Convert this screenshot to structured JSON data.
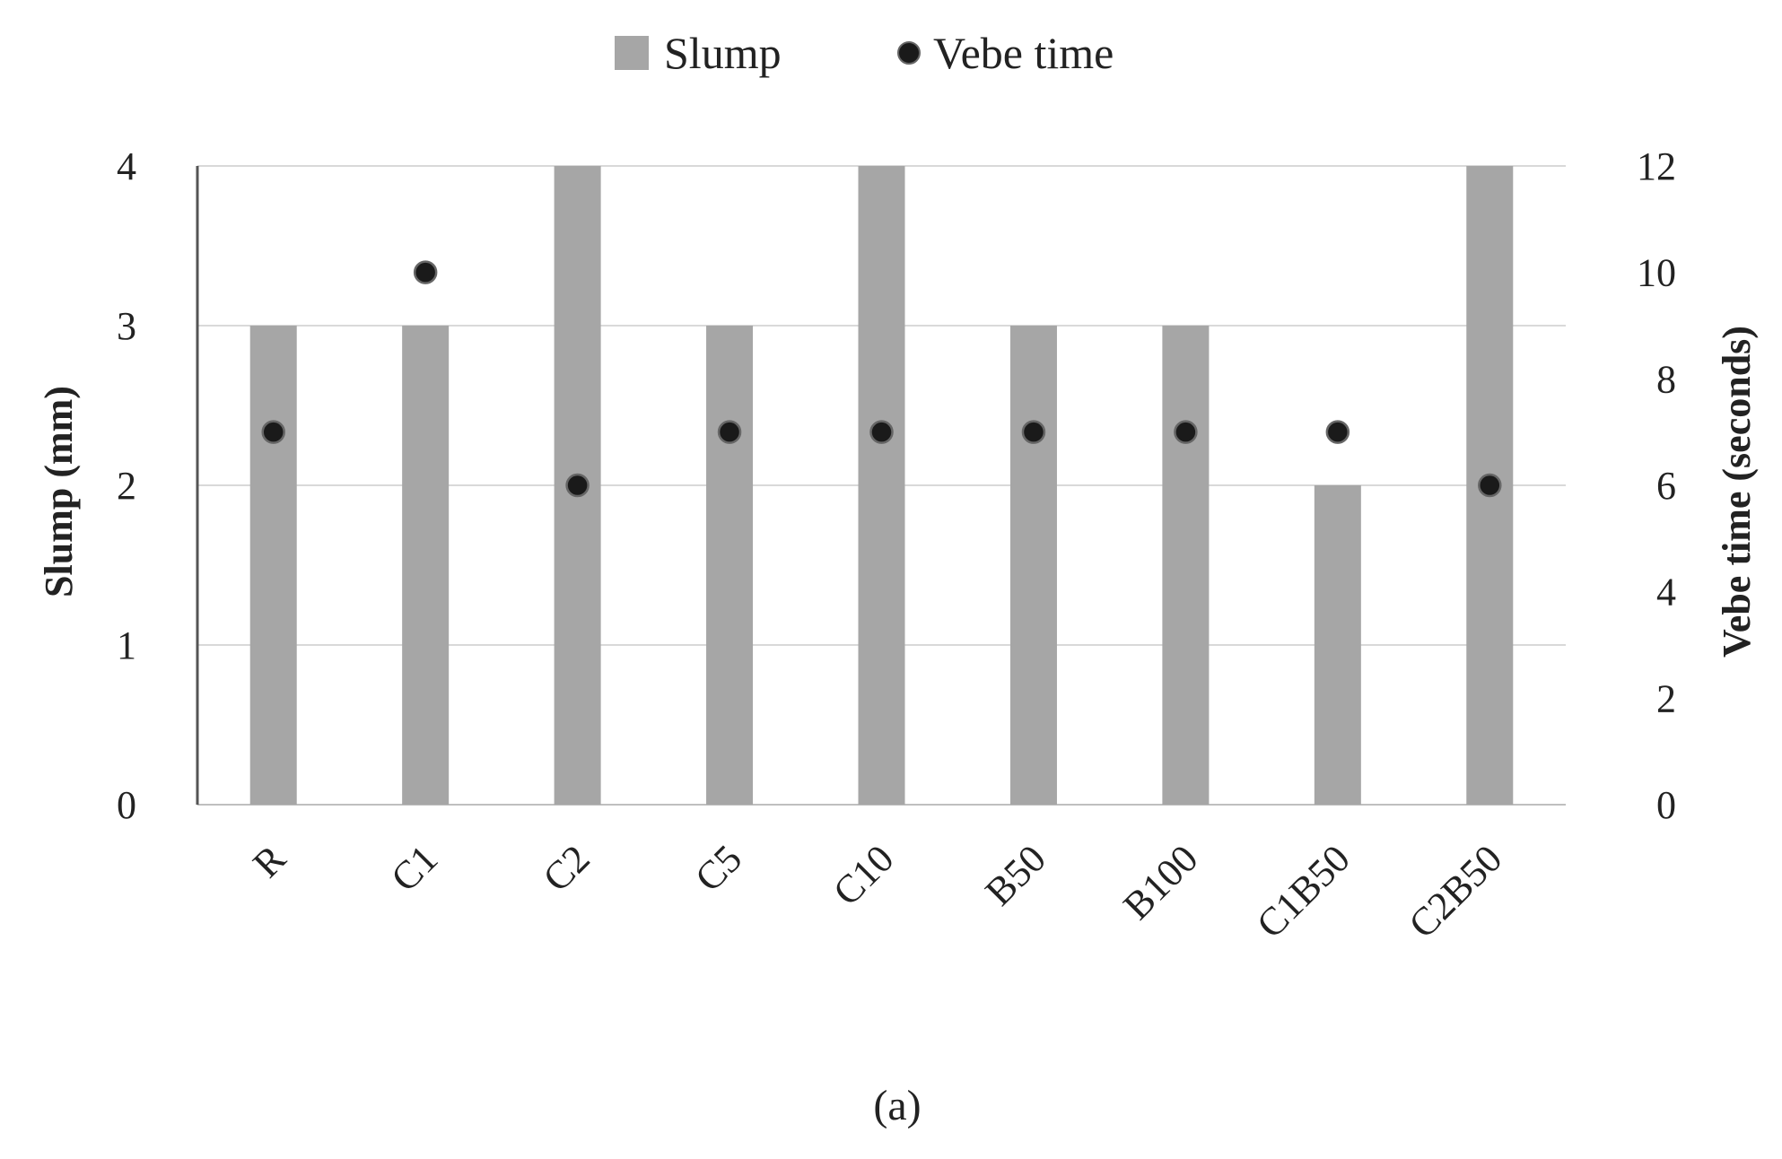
{
  "chart_data": {
    "type": "bar",
    "categories": [
      "R",
      "C1",
      "C2",
      "C5",
      "C10",
      "B50",
      "B100",
      "C1B50",
      "C2B50"
    ],
    "series": [
      {
        "name": "Slump",
        "kind": "bar",
        "axis": "left",
        "color": "#a6a6a6",
        "values": [
          3,
          3,
          4,
          3,
          4,
          3,
          3,
          2,
          4
        ]
      },
      {
        "name": "Vebe time",
        "kind": "scatter",
        "axis": "right",
        "color": "#1a1a1a",
        "values": [
          7,
          10,
          6,
          7,
          7,
          7,
          7,
          7,
          6
        ]
      }
    ],
    "ylabel": "Slump (mm)",
    "y2label": "Vebe time (seconds)",
    "ylim": [
      0,
      4
    ],
    "y2lim": [
      0,
      12
    ],
    "yticks": [
      "0",
      "1",
      "2",
      "3",
      "4"
    ],
    "y2ticks": [
      "0",
      "2",
      "4",
      "6",
      "8",
      "10",
      "12"
    ],
    "grid": true,
    "legend_position": "top-center",
    "caption": "(a)"
  }
}
